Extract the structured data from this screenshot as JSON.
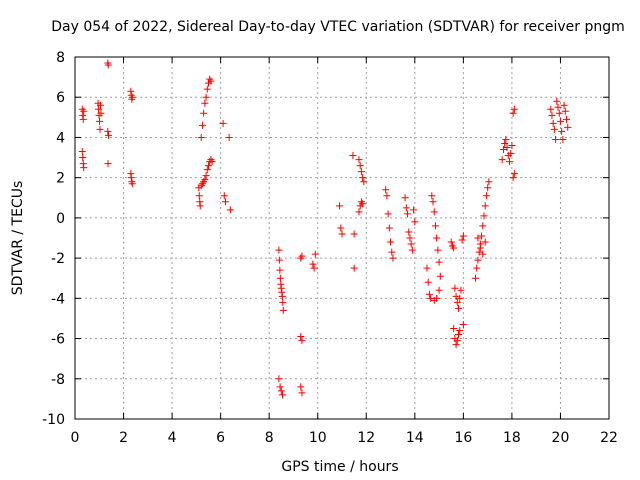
{
  "chart_data": {
    "type": "scatter",
    "title": "Day 054 of 2022, Sidereal Day-to-day VTEC variation (SDTVAR) for receiver pngm",
    "xlabel": "GPS time / hours",
    "ylabel": "SDTVAR / TECUs",
    "xlim": [
      0,
      22
    ],
    "ylim": [
      -10,
      8
    ],
    "xticks": [
      0,
      2,
      4,
      6,
      8,
      10,
      12,
      14,
      16,
      18,
      20,
      22
    ],
    "yticks": [
      -10,
      -8,
      -6,
      -4,
      -2,
      0,
      2,
      4,
      6,
      8
    ],
    "grid": true,
    "marker": "+",
    "color": "#ff0000",
    "series": [
      {
        "name": "SDTVAR",
        "points": [
          [
            0.3,
            5.4
          ],
          [
            0.32,
            5.1
          ],
          [
            0.34,
            4.9
          ],
          [
            0.36,
            5.3
          ],
          [
            0.3,
            3.3
          ],
          [
            0.32,
            3.0
          ],
          [
            0.34,
            2.7
          ],
          [
            0.36,
            2.5
          ],
          [
            0.95,
            5.7
          ],
          [
            0.97,
            5.4
          ],
          [
            0.99,
            5.1
          ],
          [
            1.01,
            4.8
          ],
          [
            1.03,
            4.4
          ],
          [
            1.05,
            5.6
          ],
          [
            1.07,
            5.2
          ],
          [
            1.35,
            7.7
          ],
          [
            1.37,
            7.6
          ],
          [
            1.35,
            4.3
          ],
          [
            1.38,
            4.1
          ],
          [
            1.36,
            2.7
          ],
          [
            2.3,
            6.3
          ],
          [
            2.32,
            6.1
          ],
          [
            2.34,
            5.9
          ],
          [
            2.36,
            6.0
          ],
          [
            2.3,
            2.2
          ],
          [
            2.32,
            2.0
          ],
          [
            2.34,
            1.8
          ],
          [
            2.36,
            1.7
          ],
          [
            5.1,
            1.5
          ],
          [
            5.12,
            1.1
          ],
          [
            5.14,
            0.8
          ],
          [
            5.16,
            0.6
          ],
          [
            5.2,
            1.6
          ],
          [
            5.25,
            1.7
          ],
          [
            5.3,
            1.8
          ],
          [
            5.35,
            1.9
          ],
          [
            5.4,
            2.1
          ],
          [
            5.45,
            2.4
          ],
          [
            5.5,
            2.6
          ],
          [
            5.55,
            2.8
          ],
          [
            5.6,
            2.9
          ],
          [
            5.65,
            2.8
          ],
          [
            5.2,
            4.0
          ],
          [
            5.25,
            4.6
          ],
          [
            5.3,
            5.2
          ],
          [
            5.35,
            5.7
          ],
          [
            5.4,
            6.0
          ],
          [
            5.45,
            6.4
          ],
          [
            5.5,
            6.7
          ],
          [
            5.55,
            6.9
          ],
          [
            5.6,
            6.8
          ],
          [
            6.1,
            4.7
          ],
          [
            6.15,
            1.1
          ],
          [
            6.2,
            0.8
          ],
          [
            6.35,
            4.0
          ],
          [
            6.4,
            0.4
          ],
          [
            8.4,
            -1.6
          ],
          [
            8.42,
            -2.1
          ],
          [
            8.44,
            -2.6
          ],
          [
            8.46,
            -3.0
          ],
          [
            8.48,
            -3.3
          ],
          [
            8.5,
            -3.5
          ],
          [
            8.52,
            -3.7
          ],
          [
            8.54,
            -3.9
          ],
          [
            8.56,
            -4.2
          ],
          [
            8.58,
            -4.6
          ],
          [
            8.4,
            -8.0
          ],
          [
            8.45,
            -8.4
          ],
          [
            8.5,
            -8.6
          ],
          [
            8.55,
            -8.8
          ],
          [
            9.3,
            -2.0
          ],
          [
            9.35,
            -1.9
          ],
          [
            9.3,
            -5.9
          ],
          [
            9.35,
            -6.1
          ],
          [
            9.3,
            -8.4
          ],
          [
            9.35,
            -8.7
          ],
          [
            9.8,
            -2.3
          ],
          [
            9.85,
            -2.5
          ],
          [
            9.9,
            -1.8
          ],
          [
            10.9,
            0.6
          ],
          [
            10.95,
            -0.5
          ],
          [
            11.0,
            -0.8
          ],
          [
            11.45,
            3.1
          ],
          [
            11.5,
            -0.8
          ],
          [
            11.5,
            -2.5
          ],
          [
            11.7,
            2.9
          ],
          [
            11.75,
            2.6
          ],
          [
            11.8,
            2.3
          ],
          [
            11.85,
            2.0
          ],
          [
            11.9,
            1.8
          ],
          [
            11.7,
            0.3
          ],
          [
            11.75,
            0.6
          ],
          [
            11.8,
            0.8
          ],
          [
            11.85,
            0.7
          ],
          [
            12.8,
            1.4
          ],
          [
            12.85,
            1.1
          ],
          [
            12.9,
            0.2
          ],
          [
            12.95,
            -0.5
          ],
          [
            13.0,
            -1.2
          ],
          [
            13.05,
            -1.7
          ],
          [
            13.1,
            -2.0
          ],
          [
            13.6,
            1.0
          ],
          [
            13.65,
            0.5
          ],
          [
            13.7,
            0.2
          ],
          [
            13.75,
            -0.7
          ],
          [
            13.8,
            -1.0
          ],
          [
            13.85,
            -1.3
          ],
          [
            13.9,
            -1.6
          ],
          [
            13.95,
            0.4
          ],
          [
            14.0,
            -0.2
          ],
          [
            14.5,
            -2.5
          ],
          [
            14.55,
            -3.2
          ],
          [
            14.6,
            -3.8
          ],
          [
            14.65,
            -4.0
          ],
          [
            14.7,
            1.1
          ],
          [
            14.75,
            0.8
          ],
          [
            14.8,
            0.3
          ],
          [
            14.85,
            -0.4
          ],
          [
            14.9,
            -1.0
          ],
          [
            14.95,
            -1.6
          ],
          [
            15.0,
            -2.2
          ],
          [
            15.05,
            -2.9
          ],
          [
            14.8,
            -4.1
          ],
          [
            14.9,
            -4.0
          ],
          [
            15.0,
            -3.6
          ],
          [
            15.5,
            -1.2
          ],
          [
            15.55,
            -1.4
          ],
          [
            15.6,
            -1.5
          ],
          [
            15.65,
            -3.5
          ],
          [
            15.7,
            -3.9
          ],
          [
            15.75,
            -4.2
          ],
          [
            15.8,
            -4.5
          ],
          [
            15.85,
            -4.0
          ],
          [
            15.9,
            -3.6
          ],
          [
            15.95,
            -1.1
          ],
          [
            16.0,
            -0.9
          ],
          [
            15.6,
            -5.5
          ],
          [
            15.65,
            -6.0
          ],
          [
            15.7,
            -6.3
          ],
          [
            15.75,
            -6.1
          ],
          [
            15.8,
            -5.8
          ],
          [
            15.85,
            -5.6
          ],
          [
            16.0,
            -5.3
          ],
          [
            16.5,
            -3.0
          ],
          [
            16.55,
            -2.5
          ],
          [
            16.6,
            -2.1
          ],
          [
            16.65,
            -1.7
          ],
          [
            16.7,
            -1.3
          ],
          [
            16.75,
            -0.9
          ],
          [
            16.8,
            -0.4
          ],
          [
            16.85,
            0.1
          ],
          [
            16.9,
            0.6
          ],
          [
            16.95,
            1.1
          ],
          [
            17.0,
            1.5
          ],
          [
            17.05,
            1.8
          ],
          [
            16.6,
            -1.0
          ],
          [
            16.7,
            -1.5
          ],
          [
            16.8,
            -1.8
          ],
          [
            16.9,
            -1.2
          ],
          [
            17.6,
            2.9
          ],
          [
            17.65,
            3.4
          ],
          [
            17.7,
            3.7
          ],
          [
            17.75,
            3.9
          ],
          [
            17.8,
            3.5
          ],
          [
            17.85,
            3.1
          ],
          [
            17.9,
            2.8
          ],
          [
            17.95,
            3.2
          ],
          [
            18.0,
            3.6
          ],
          [
            18.05,
            2.0
          ],
          [
            18.1,
            2.2
          ],
          [
            18.05,
            5.2
          ],
          [
            18.1,
            5.4
          ],
          [
            19.6,
            5.4
          ],
          [
            19.65,
            5.1
          ],
          [
            19.7,
            4.7
          ],
          [
            19.75,
            4.4
          ],
          [
            19.8,
            3.9
          ],
          [
            19.85,
            5.8
          ],
          [
            19.9,
            5.5
          ],
          [
            19.95,
            5.2
          ],
          [
            20.0,
            4.8
          ],
          [
            20.05,
            4.3
          ],
          [
            20.1,
            3.9
          ],
          [
            20.15,
            5.6
          ],
          [
            20.2,
            5.3
          ],
          [
            20.25,
            4.9
          ],
          [
            20.3,
            4.5
          ]
        ]
      }
    ]
  }
}
